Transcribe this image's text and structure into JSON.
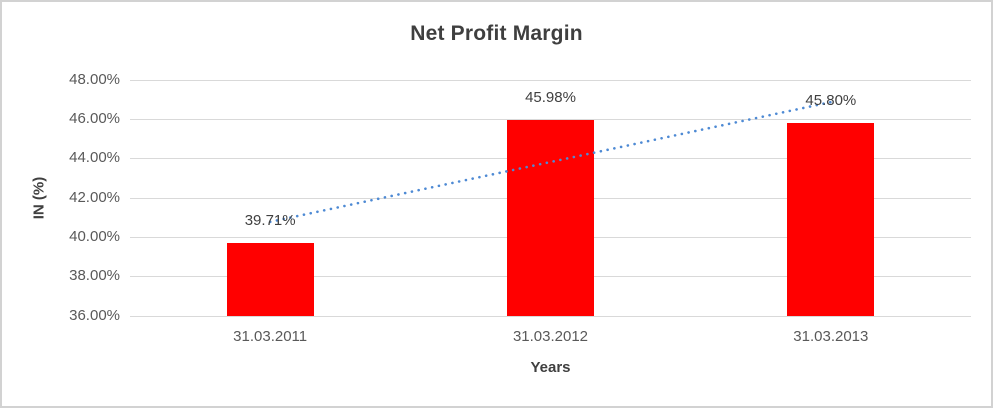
{
  "title": "Net Profit Margin",
  "colors": {
    "bar": "#ff0000",
    "trendline": "#4e8ad4",
    "gridline": "#d9d9d9",
    "title_text": "#3f3f3f",
    "axis_title_text": "#404040",
    "tick_text": "#595959",
    "frame_border": "#d2d2d2"
  },
  "chart_data": {
    "type": "bar",
    "title": "Net Profit Margin",
    "xlabel": "Years",
    "ylabel": "IN (%)",
    "categories": [
      "31.03.2011",
      "31.03.2012",
      "31.03.2013"
    ],
    "values": [
      39.71,
      45.98,
      45.8
    ],
    "data_labels": [
      "39.71%",
      "45.98%",
      "45.80%"
    ],
    "ylim": [
      36,
      48
    ],
    "yticks": [
      {
        "value": 48,
        "label": "48.00%"
      },
      {
        "value": 46,
        "label": "46.00%"
      },
      {
        "value": 44,
        "label": "44.00%"
      },
      {
        "value": 42,
        "label": "42.00%"
      },
      {
        "value": 40,
        "label": "40.00%"
      },
      {
        "value": 38,
        "label": "38.00%"
      },
      {
        "value": 36,
        "label": "36.00%"
      }
    ],
    "grid": true,
    "legend": "none",
    "trendline": {
      "type": "linear",
      "style": "dotted"
    }
  }
}
